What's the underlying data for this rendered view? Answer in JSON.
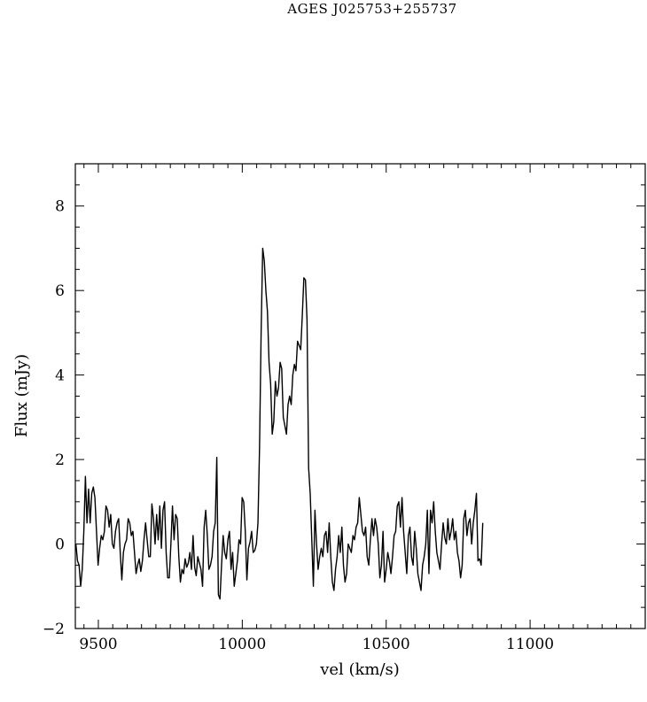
{
  "chart_data": {
    "type": "line",
    "title": "AGES J025753+255737",
    "xlabel": "vel (km/s)",
    "ylabel": "Flux (mJy)",
    "xlim": [
      9420,
      11400
    ],
    "ylim": [
      -2,
      9
    ],
    "x_ticks": [
      9500,
      10000,
      10500,
      11000
    ],
    "x_tick_labels": [
      "9500",
      "10000",
      "10500",
      "11000"
    ],
    "y_ticks": [
      -2,
      0,
      2,
      4,
      6,
      8
    ],
    "y_tick_labels": [
      "−2",
      "0",
      "2",
      "4",
      "6",
      "8"
    ],
    "grid": false,
    "legend": "none",
    "series": [
      {
        "x_start": 9422,
        "x_step": 5.5,
        "values": [
          0,
          -0.4,
          -0.5,
          -1.0,
          -0.6,
          0.3,
          1.6,
          0.5,
          1.3,
          0.5,
          1.2,
          1.35,
          1.1,
          0.3,
          -0.5,
          -0.1,
          0.2,
          0.1,
          0.3,
          0.9,
          0.8,
          0.4,
          0.7,
          0.0,
          -0.1,
          0.3,
          0.5,
          0.6,
          -0.2,
          -0.85,
          -0.2,
          0.0,
          0.1,
          0.6,
          0.5,
          0.2,
          0.3,
          -0.2,
          -0.7,
          -0.5,
          -0.35,
          -0.65,
          -0.4,
          0.1,
          0.5,
          0.1,
          -0.3,
          -0.3,
          0.95,
          0.6,
          0.0,
          0.7,
          0.1,
          0.9,
          -0.1,
          0.8,
          1.0,
          -0.2,
          -0.8,
          -0.8,
          0.0,
          0.9,
          0.1,
          0.7,
          0.6,
          -0.3,
          -0.9,
          -0.6,
          -0.7,
          -0.35,
          -0.55,
          -0.45,
          -0.2,
          -0.6,
          0.2,
          -0.55,
          -0.75,
          -0.3,
          -0.45,
          -0.6,
          -1.0,
          0.4,
          0.8,
          0.2,
          -0.6,
          -0.5,
          -0.3,
          0.3,
          0.5,
          2.05,
          -1.2,
          -1.3,
          -0.5,
          0.2,
          -0.2,
          -0.35,
          0.1,
          0.3,
          -0.6,
          -0.2,
          -1.0,
          -0.7,
          -0.4,
          0.1,
          0.0,
          1.1,
          1.0,
          0.3,
          -0.85,
          -0.1,
          0.05,
          0.3,
          -0.2,
          -0.15,
          0.0,
          0.5,
          2.3,
          5.0,
          7.0,
          6.7,
          6.0,
          5.5,
          4.3,
          3.8,
          2.6,
          2.9,
          3.85,
          3.5,
          3.7,
          4.3,
          4.15,
          3.0,
          2.8,
          2.6,
          3.3,
          3.5,
          3.3,
          4.0,
          4.25,
          4.1,
          4.8,
          4.7,
          4.6,
          5.4,
          6.3,
          6.25,
          5.3,
          1.8,
          1.2,
          0.1,
          -1.0,
          0.8,
          0.0,
          -0.6,
          -0.3,
          -0.1,
          -0.3,
          0.2,
          0.3,
          -0.2,
          0.5,
          -0.3,
          -0.9,
          -1.1,
          -0.6,
          -0.3,
          0.2,
          -0.2,
          0.4,
          -0.5,
          -0.9,
          -0.7,
          0.0,
          -0.1,
          -0.2,
          0.2,
          0.1,
          0.4,
          0.5,
          1.1,
          0.7,
          0.3,
          0.2,
          0.4,
          -0.3,
          -0.5,
          0.1,
          0.6,
          0.2,
          0.6,
          0.4,
          0.0,
          -0.8,
          -0.5,
          0.3,
          -0.9,
          -0.6,
          -0.2,
          -0.4,
          -0.7,
          -0.3,
          0.2,
          0.3,
          0.9,
          1.0,
          0.4,
          1.1,
          0.3,
          -0.2,
          -0.7,
          0.2,
          0.4,
          -0.3,
          -0.5,
          0.3,
          -0.1,
          -0.7,
          -0.9,
          -1.1,
          -0.5,
          -0.3,
          0.0,
          0.8,
          -0.7,
          0.8,
          0.5,
          1.0,
          0.3,
          -0.2,
          -0.4,
          -0.6,
          0.0,
          0.5,
          0.15,
          0.0,
          0.6,
          0.1,
          0.3,
          0.6,
          0.1,
          0.3,
          -0.2,
          -0.4,
          -0.8,
          -0.5,
          0.6,
          0.8,
          0.2,
          0.5,
          0.6,
          0.0,
          0.5,
          0.8,
          1.2,
          -0.4,
          -0.35,
          -0.5,
          0.5
        ]
      }
    ]
  }
}
